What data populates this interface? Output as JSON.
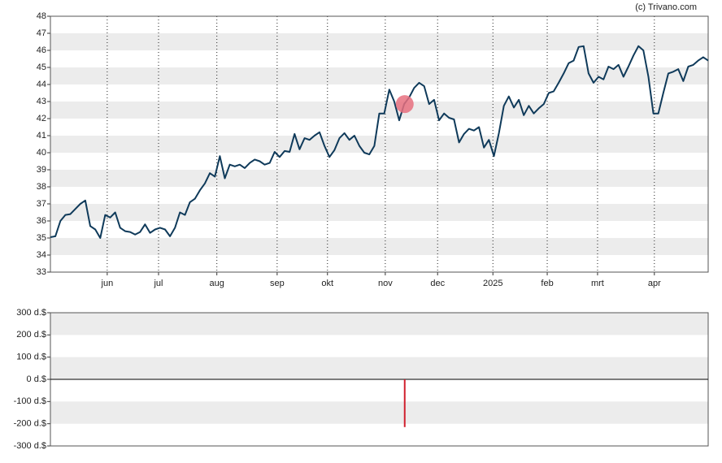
{
  "chart_data": [
    {
      "type": "line",
      "annotation": "(c) Trivano.com",
      "color": "#0f3a5a",
      "values": [
        35.05,
        35.1,
        36.0,
        36.35,
        36.4,
        36.7,
        37.0,
        37.2,
        35.7,
        35.5,
        35.0,
        36.35,
        36.2,
        36.5,
        35.6,
        35.4,
        35.35,
        35.2,
        35.35,
        35.8,
        35.3,
        35.5,
        35.6,
        35.5,
        35.1,
        35.6,
        36.5,
        36.35,
        37.1,
        37.3,
        37.8,
        38.2,
        38.8,
        38.6,
        39.8,
        38.5,
        39.3,
        39.2,
        39.3,
        39.1,
        39.4,
        39.6,
        39.5,
        39.3,
        39.4,
        40.05,
        39.75,
        40.1,
        40.05,
        41.1,
        40.2,
        40.85,
        40.75,
        41.0,
        41.2,
        40.4,
        39.75,
        40.15,
        40.85,
        41.15,
        40.75,
        41.0,
        40.4,
        40.0,
        39.9,
        40.4,
        42.3,
        42.3,
        43.7,
        43.0,
        41.9,
        42.85,
        43.25,
        43.8,
        44.1,
        43.9,
        42.85,
        43.1,
        41.9,
        42.3,
        42.05,
        41.95,
        40.6,
        41.1,
        41.4,
        41.3,
        41.5,
        40.3,
        40.75,
        39.8,
        41.15,
        42.75,
        43.3,
        42.65,
        43.1,
        42.2,
        42.75,
        42.3,
        42.6,
        42.85,
        43.5,
        43.6,
        44.1,
        44.65,
        45.25,
        45.4,
        46.2,
        46.25,
        44.65,
        44.1,
        44.45,
        44.3,
        45.05,
        44.9,
        45.15,
        44.45,
        45.05,
        45.7,
        46.25,
        46.0,
        44.45,
        42.3,
        42.3,
        43.5,
        44.65,
        44.75,
        44.9,
        44.2,
        45.05,
        45.15,
        45.4,
        45.6,
        45.4
      ],
      "xlim": [
        0,
        132
      ],
      "xticks": [
        {
          "value": 11.4,
          "label": "jun"
        },
        {
          "value": 21.7,
          "label": "jul"
        },
        {
          "value": 33.4,
          "label": "aug"
        },
        {
          "value": 45.5,
          "label": "sep"
        },
        {
          "value": 55.6,
          "label": "okt"
        },
        {
          "value": 67.2,
          "label": "nov"
        },
        {
          "value": 77.7,
          "label": "dec"
        },
        {
          "value": 88.8,
          "label": "2025"
        },
        {
          "value": 99.7,
          "label": "feb"
        },
        {
          "value": 109.8,
          "label": "mrt"
        },
        {
          "value": 121.2,
          "label": "apr"
        }
      ],
      "ylim": [
        33,
        48
      ],
      "yticks": [
        33,
        34,
        35,
        36,
        37,
        38,
        39,
        40,
        41,
        42,
        43,
        44,
        45,
        46,
        47,
        48
      ],
      "marker": {
        "x": 71.1,
        "y": 42.85,
        "color": "#e8707f"
      }
    },
    {
      "type": "bar",
      "color": "#d0202e",
      "x": [
        71.1
      ],
      "values": [
        -215
      ],
      "xlim": [
        0,
        132
      ],
      "ylim": [
        -300,
        300
      ],
      "yticks": [
        {
          "value": -300,
          "label": "-300 d.$"
        },
        {
          "value": -200,
          "label": "-200 d.$"
        },
        {
          "value": -100,
          "label": "-100 d.$"
        },
        {
          "value": 0,
          "label": "0 d.$"
        },
        {
          "value": 100,
          "label": "100 d.$"
        },
        {
          "value": 200,
          "label": "200 d.$"
        },
        {
          "value": 300,
          "label": "300 d.$"
        }
      ]
    }
  ]
}
